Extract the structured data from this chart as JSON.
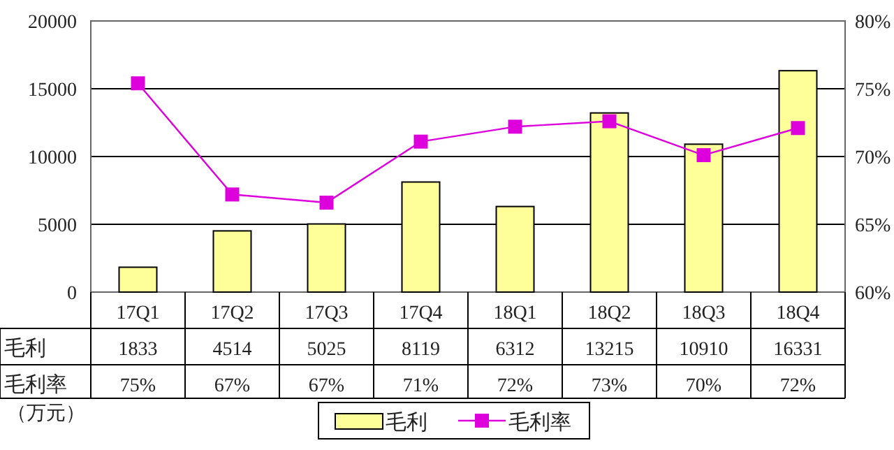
{
  "chart_data": {
    "type": "bar",
    "categories": [
      "17Q1",
      "17Q2",
      "17Q3",
      "17Q4",
      "18Q1",
      "18Q2",
      "18Q3",
      "18Q4"
    ],
    "series": [
      {
        "name": "毛利",
        "color": "#ffff99",
        "values": [
          1833,
          4514,
          5025,
          8119,
          6312,
          13215,
          10910,
          16331
        ],
        "value_labels": [
          "1833",
          "4514",
          "5025",
          "8119",
          "6312",
          "13215",
          "10910",
          "16331"
        ]
      },
      {
        "name": "毛利率",
        "type": "line",
        "axis": "y2",
        "color": "#dd00dd",
        "values": [
          75.4,
          67.2,
          66.6,
          71.1,
          72.2,
          72.6,
          70.1,
          72.1
        ],
        "value_labels": [
          "75%",
          "67%",
          "67%",
          "71%",
          "72%",
          "73%",
          "70%",
          "72%"
        ]
      }
    ],
    "ylim": [
      0,
      20000
    ],
    "yticks": [
      0,
      5000,
      10000,
      15000,
      20000
    ],
    "y2lim": [
      60,
      80
    ],
    "y2ticks": [
      {
        "value": 60,
        "label": "60%"
      },
      {
        "value": 65,
        "label": "65%"
      },
      {
        "value": 70,
        "label": "70%"
      },
      {
        "value": 75,
        "label": "75%"
      },
      {
        "value": 80,
        "label": "80%"
      }
    ],
    "ylabel": "（万元）",
    "grid": "y",
    "legend": "bottom",
    "marker": "square"
  }
}
